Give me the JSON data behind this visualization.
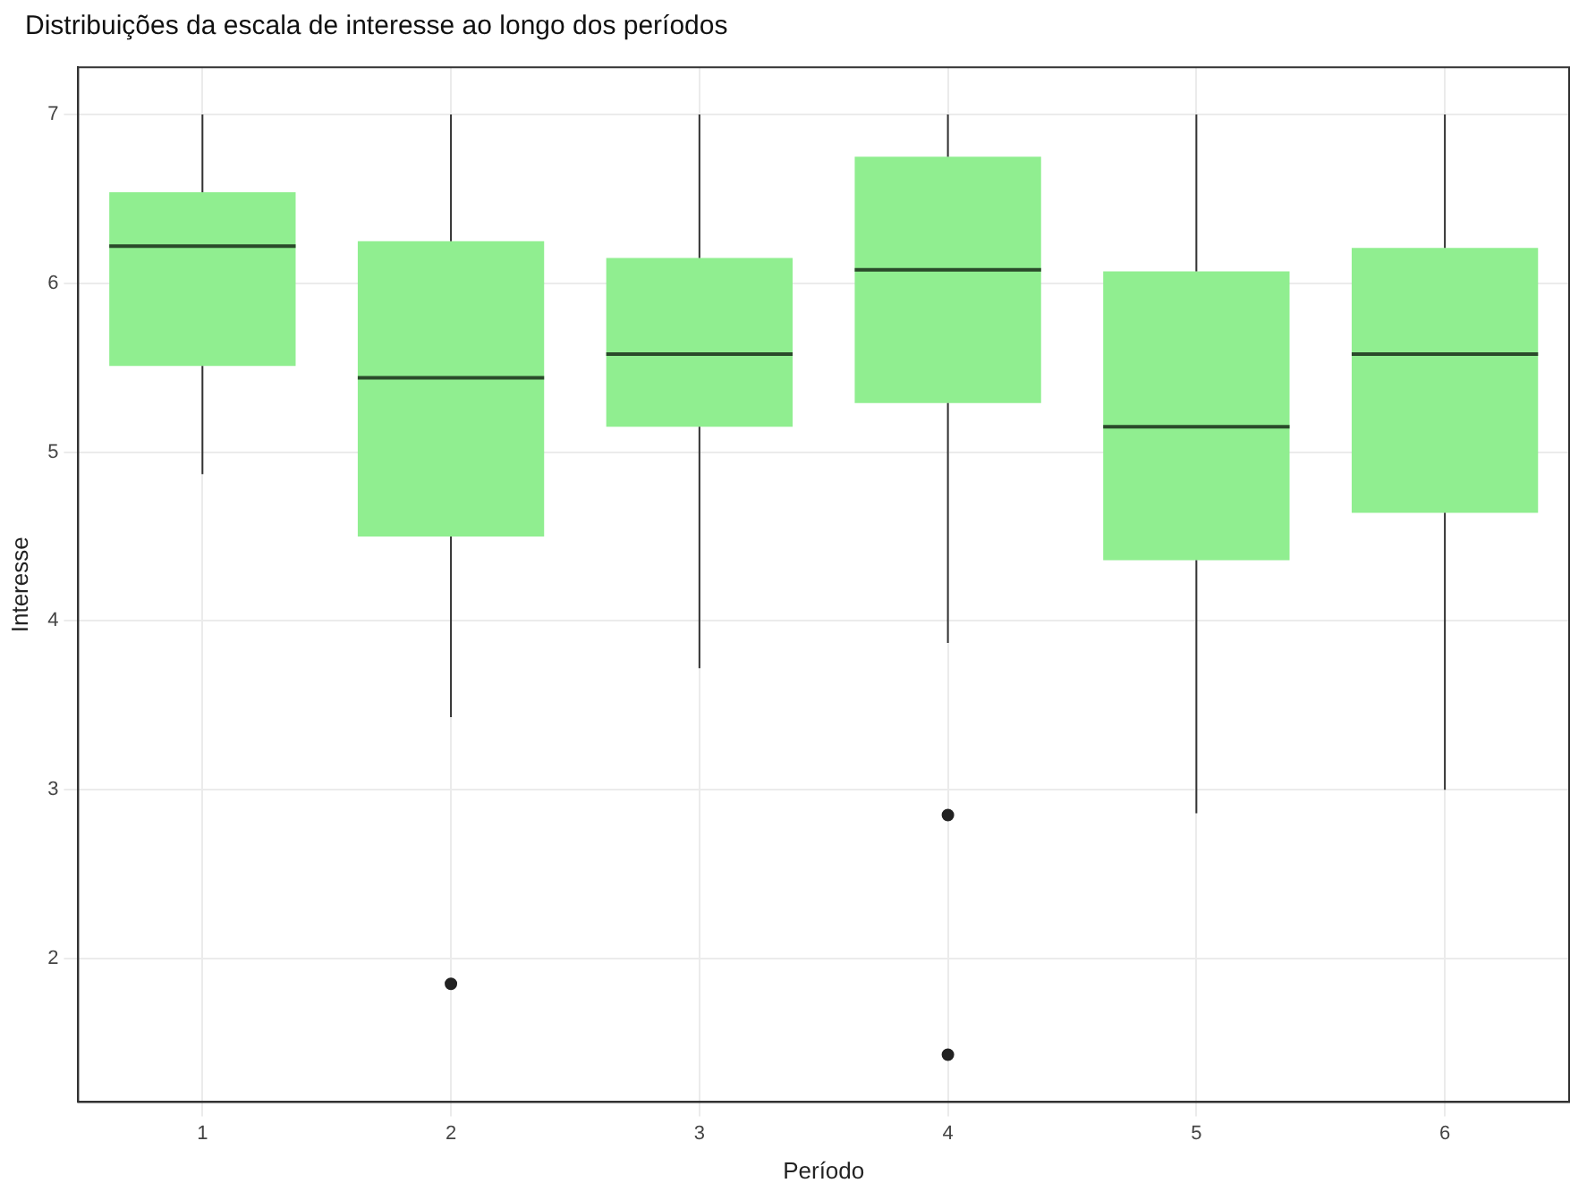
{
  "chart_data": {
    "type": "box",
    "title": "Distribuições da escala de interesse ao longo dos períodos",
    "xlabel": "Período",
    "ylabel": "Interesse",
    "categories": [
      "1",
      "2",
      "3",
      "4",
      "5",
      "6"
    ],
    "color": "#90ee90",
    "boxes": [
      {
        "low": 4.87,
        "q1": 5.51,
        "median": 6.22,
        "q3": 6.54,
        "high": 7
      },
      {
        "low": 3.43,
        "q1": 4.5,
        "median": 5.44,
        "q3": 6.25,
        "high": 7,
        "outliers": [
          1.85
        ]
      },
      {
        "low": 3.72,
        "q1": 5.15,
        "median": 5.58,
        "q3": 6.15,
        "high": 7
      },
      {
        "low": 3.87,
        "q1": 5.29,
        "median": 6.08,
        "q3": 6.75,
        "high": 7,
        "outliers": [
          2.85,
          1.43
        ]
      },
      {
        "low": 2.86,
        "q1": 4.36,
        "median": 5.15,
        "q3": 6.07,
        "high": 7
      },
      {
        "low": 3,
        "q1": 4.64,
        "median": 5.58,
        "q3": 6.21,
        "high": 7
      }
    ],
    "ylim": [
      1.15,
      7.28
    ],
    "yticks": [
      2,
      3,
      4,
      5,
      6,
      7
    ],
    "grid": true,
    "legend": false
  }
}
